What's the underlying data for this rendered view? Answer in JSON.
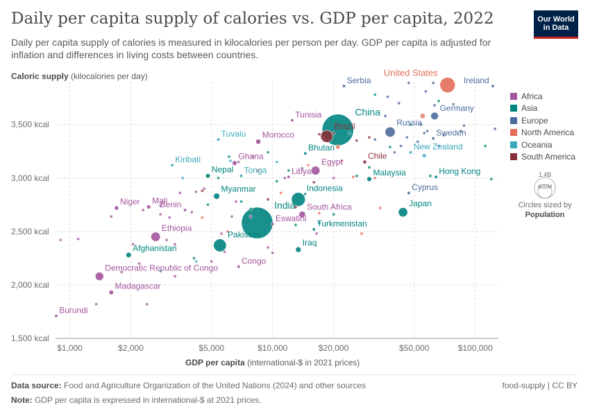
{
  "header": {
    "title": "Daily per capita supply of calories vs. GDP per capita, 2022",
    "subtitle": "Daily per capita supply of calories is measured in kilocalories per person per day. GDP per capita is adjusted for inflation and differences in living costs between countries.",
    "logo_line1": "Our World",
    "logo_line2": "in Data"
  },
  "axes": {
    "y_name": "Caloric supply",
    "y_unit": " (kilocalories per day)",
    "x_name": "GDP per capita",
    "x_unit": " (international-$ in 2021 prices)"
  },
  "legend": {
    "regions": [
      {
        "name": "Africa",
        "color": "#a2559c"
      },
      {
        "name": "Asia",
        "color": "#00847e"
      },
      {
        "name": "Europe",
        "color": "#4c6a9c"
      },
      {
        "name": "North America",
        "color": "#e56e5a"
      },
      {
        "name": "Oceania",
        "color": "#38aaba"
      },
      {
        "name": "South America",
        "color": "#883039"
      }
    ],
    "size_max": "1.4B",
    "size_min": "600M",
    "size_note": "Circles sized by",
    "size_var": "Population"
  },
  "footer": {
    "source_label": "Data source:",
    "source_text": " Food and Agriculture Organization of the United Nations (2024) and other sources",
    "note_label": "Note:",
    "note_text": " GDP per capita is expressed in international-$ at 2021 prices.",
    "right": "food-supply | CC BY"
  },
  "chart_data": {
    "type": "scatter",
    "x_scale": "log",
    "xlim": [
      850,
      130000
    ],
    "ylim": [
      1500,
      3900
    ],
    "x_ticks": [
      {
        "v": 1000,
        "label": "$1,000"
      },
      {
        "v": 2000,
        "label": "$2,000"
      },
      {
        "v": 5000,
        "label": "$5,000"
      },
      {
        "v": 10000,
        "label": "$10,000"
      },
      {
        "v": 20000,
        "label": "$20,000"
      },
      {
        "v": 50000,
        "label": "$50,000"
      },
      {
        "v": 100000,
        "label": "$100,000"
      }
    ],
    "y_ticks": [
      {
        "v": 1500,
        "label": "1,500 kcal"
      },
      {
        "v": 2000,
        "label": "2,000 kcal"
      },
      {
        "v": 2500,
        "label": "2,500 kcal"
      },
      {
        "v": 3000,
        "label": "3,000 kcal"
      },
      {
        "v": 3500,
        "label": "3,500 kcal"
      }
    ],
    "grid": true,
    "legend_position": "right",
    "labeled_points": [
      {
        "label": "Burundi",
        "region": "Africa",
        "x": 850,
        "y": 1710,
        "pop": 13,
        "anchor": "start"
      },
      {
        "label": "Madagascar",
        "region": "Africa",
        "x": 1600,
        "y": 1930,
        "pop": 30,
        "anchor": "start"
      },
      {
        "label": "Democratic Republic of Congo",
        "region": "Africa",
        "x": 1400,
        "y": 2080,
        "pop": 100,
        "anchor": "start"
      },
      {
        "label": "Afghanistan",
        "region": "Asia",
        "x": 1950,
        "y": 2280,
        "pop": 41,
        "anchor": "start"
      },
      {
        "label": "Ethiopia",
        "region": "Africa",
        "x": 2650,
        "y": 2450,
        "pop": 123,
        "anchor": "start"
      },
      {
        "label": "Niger",
        "region": "Africa",
        "x": 1700,
        "y": 2720,
        "pop": 26,
        "anchor": "start"
      },
      {
        "label": "Mali",
        "region": "Africa",
        "x": 2450,
        "y": 2730,
        "pop": 23,
        "anchor": "start"
      },
      {
        "label": "Benin",
        "region": "Africa",
        "x": 3700,
        "y": 2700,
        "pop": 13,
        "anchor": "end"
      },
      {
        "label": "Kiribati",
        "region": "Oceania",
        "x": 3200,
        "y": 3120,
        "pop": 1,
        "anchor": "start"
      },
      {
        "label": "Nepal",
        "region": "Asia",
        "x": 4800,
        "y": 3020,
        "pop": 30,
        "anchor": "start"
      },
      {
        "label": "Tuvalu",
        "region": "Oceania",
        "x": 5400,
        "y": 3360,
        "pop": 1,
        "anchor": "start"
      },
      {
        "label": "Pakistan",
        "region": "Asia",
        "x": 5500,
        "y": 2370,
        "pop": 236,
        "anchor": "start"
      },
      {
        "label": "Congo",
        "region": "Africa",
        "x": 6800,
        "y": 2170,
        "pop": 6,
        "anchor": "start"
      },
      {
        "label": "Myanmar",
        "region": "Asia",
        "x": 5300,
        "y": 2830,
        "pop": 54,
        "anchor": "start"
      },
      {
        "label": "Ghana",
        "region": "Africa",
        "x": 6500,
        "y": 3140,
        "pop": 33,
        "anchor": "start"
      },
      {
        "label": "Morocco",
        "region": "Africa",
        "x": 8500,
        "y": 3340,
        "pop": 37,
        "anchor": "start"
      },
      {
        "label": "Tonga",
        "region": "Oceania",
        "x": 7000,
        "y": 3020,
        "pop": 1,
        "anchor": "start"
      },
      {
        "label": "India",
        "region": "Asia",
        "x": 8400,
        "y": 2580,
        "pop": 1420,
        "anchor": "start"
      },
      {
        "label": "Eswatini",
        "region": "Africa",
        "x": 10000,
        "y": 2570,
        "pop": 1,
        "anchor": "start"
      },
      {
        "label": "Iraq",
        "region": "Asia",
        "x": 13400,
        "y": 2330,
        "pop": 44,
        "anchor": "start"
      },
      {
        "label": "Indonesia",
        "region": "Asia",
        "x": 13400,
        "y": 2800,
        "pop": 275,
        "anchor": "start"
      },
      {
        "label": "South Africa",
        "region": "Africa",
        "x": 14000,
        "y": 2660,
        "pop": 60,
        "anchor": "start"
      },
      {
        "label": "Turkmenistan",
        "region": "Asia",
        "x": 16000,
        "y": 2520,
        "pop": 6,
        "anchor": "start"
      },
      {
        "label": "Libya",
        "region": "Africa",
        "x": 12000,
        "y": 3010,
        "pop": 7,
        "anchor": "start"
      },
      {
        "label": "Egypt",
        "region": "Africa",
        "x": 16300,
        "y": 3070,
        "pop": 111,
        "anchor": "start"
      },
      {
        "label": "Tunisia",
        "region": "Africa",
        "x": 12500,
        "y": 3540,
        "pop": 12,
        "anchor": "start"
      },
      {
        "label": "Bhutan",
        "region": "Asia",
        "x": 14500,
        "y": 3230,
        "pop": 1,
        "anchor": "start"
      },
      {
        "label": "China",
        "region": "Asia",
        "x": 21000,
        "y": 3450,
        "pop": 1425,
        "anchor": "start"
      },
      {
        "label": "Brazil",
        "region": "South America",
        "x": 18500,
        "y": 3390,
        "pop": 215,
        "anchor": "start"
      },
      {
        "label": "Chile",
        "region": "South America",
        "x": 28500,
        "y": 3150,
        "pop": 19,
        "anchor": "start"
      },
      {
        "label": "Serbia",
        "region": "Europe",
        "x": 22500,
        "y": 3860,
        "pop": 7,
        "anchor": "start"
      },
      {
        "label": "United States",
        "region": "North America",
        "x": 73000,
        "y": 3870,
        "pop": 338,
        "anchor": "end"
      },
      {
        "label": "Ireland",
        "region": "Europe",
        "x": 122000,
        "y": 3860,
        "pop": 5,
        "anchor": "end"
      },
      {
        "label": "Germany",
        "region": "Europe",
        "x": 63000,
        "y": 3580,
        "pop": 83,
        "anchor": "start"
      },
      {
        "label": "Russia",
        "region": "Europe",
        "x": 38000,
        "y": 3430,
        "pop": 145,
        "anchor": "start"
      },
      {
        "label": "Sweden",
        "region": "Europe",
        "x": 62000,
        "y": 3370,
        "pop": 10,
        "anchor": "start"
      },
      {
        "label": "New Zealand",
        "region": "Oceania",
        "x": 48000,
        "y": 3240,
        "pop": 5,
        "anchor": "start"
      },
      {
        "label": "Hong Kong",
        "region": "Asia",
        "x": 64000,
        "y": 3010,
        "pop": 7,
        "anchor": "start"
      },
      {
        "label": "Malaysia",
        "region": "Asia",
        "x": 30000,
        "y": 2990,
        "pop": 34,
        "anchor": "start"
      },
      {
        "label": "Cyprus",
        "region": "Europe",
        "x": 47000,
        "y": 2860,
        "pop": 1,
        "anchor": "start"
      },
      {
        "label": "Japan",
        "region": "Asia",
        "x": 44000,
        "y": 2680,
        "pop": 124,
        "anchor": "start"
      }
    ],
    "other_points": [
      {
        "region": "Africa",
        "x": 900,
        "y": 2420,
        "pop": 5
      },
      {
        "region": "Africa",
        "x": 1100,
        "y": 2430,
        "pop": 4
      },
      {
        "region": "Africa",
        "x": 1350,
        "y": 1820,
        "pop": 8
      },
      {
        "region": "Africa",
        "x": 1600,
        "y": 2640,
        "pop": 8
      },
      {
        "region": "Africa",
        "x": 1800,
        "y": 2120,
        "pop": 6
      },
      {
        "region": "Africa",
        "x": 2050,
        "y": 2380,
        "pop": 7
      },
      {
        "region": "Africa",
        "x": 2200,
        "y": 2200,
        "pop": 5
      },
      {
        "region": "Africa",
        "x": 2400,
        "y": 1820,
        "pop": 8
      },
      {
        "region": "Africa",
        "x": 2300,
        "y": 2700,
        "pop": 9
      },
      {
        "region": "Africa",
        "x": 2800,
        "y": 2740,
        "pop": 8
      },
      {
        "region": "Africa",
        "x": 2800,
        "y": 2660,
        "pop": 8
      },
      {
        "region": "Africa",
        "x": 3100,
        "y": 2630,
        "pop": 5
      },
      {
        "region": "Africa",
        "x": 3000,
        "y": 2420,
        "pop": 9
      },
      {
        "region": "Africa",
        "x": 3300,
        "y": 2380,
        "pop": 12
      },
      {
        "region": "Africa",
        "x": 3300,
        "y": 2080,
        "pop": 7
      },
      {
        "region": "Africa",
        "x": 3500,
        "y": 2860,
        "pop": 9
      },
      {
        "region": "Africa",
        "x": 4000,
        "y": 2680,
        "pop": 9
      },
      {
        "region": "Africa",
        "x": 4200,
        "y": 2870,
        "pop": 8
      },
      {
        "region": "Africa",
        "x": 4600,
        "y": 2900,
        "pop": 6
      },
      {
        "region": "Africa",
        "x": 5000,
        "y": 2220,
        "pop": 8
      },
      {
        "region": "Africa",
        "x": 5600,
        "y": 2480,
        "pop": 8
      },
      {
        "region": "Africa",
        "x": 5800,
        "y": 2310,
        "pop": 6
      },
      {
        "region": "Africa",
        "x": 6300,
        "y": 2640,
        "pop": 5
      },
      {
        "region": "Africa",
        "x": 6600,
        "y": 2780,
        "pop": 9
      },
      {
        "region": "Africa",
        "x": 6800,
        "y": 3150,
        "pop": 5
      },
      {
        "region": "Africa",
        "x": 7800,
        "y": 2640,
        "pop": 6
      },
      {
        "region": "Africa",
        "x": 8000,
        "y": 3200,
        "pop": 5
      },
      {
        "region": "Africa",
        "x": 9500,
        "y": 2350,
        "pop": 6
      },
      {
        "region": "Africa",
        "x": 10000,
        "y": 2300,
        "pop": 5
      },
      {
        "region": "Africa",
        "x": 11500,
        "y": 3000,
        "pop": 5
      },
      {
        "region": "Africa",
        "x": 14000,
        "y": 3090,
        "pop": 5
      },
      {
        "region": "Africa",
        "x": 16500,
        "y": 2480,
        "pop": 5
      },
      {
        "region": "Africa",
        "x": 20000,
        "y": 3000,
        "pop": 5
      },
      {
        "region": "Asia",
        "x": 4100,
        "y": 2250,
        "pop": 5
      },
      {
        "region": "Asia",
        "x": 4800,
        "y": 2750,
        "pop": 8
      },
      {
        "region": "Asia",
        "x": 5400,
        "y": 3000,
        "pop": 8
      },
      {
        "region": "Asia",
        "x": 6100,
        "y": 3200,
        "pop": 5
      },
      {
        "region": "Asia",
        "x": 7000,
        "y": 2780,
        "pop": 10
      },
      {
        "region": "Asia",
        "x": 7800,
        "y": 2710,
        "pop": 8
      },
      {
        "region": "Asia",
        "x": 9500,
        "y": 3240,
        "pop": 8
      },
      {
        "region": "Asia",
        "x": 10500,
        "y": 2970,
        "pop": 10
      },
      {
        "region": "Asia",
        "x": 12000,
        "y": 3070,
        "pop": 6
      },
      {
        "region": "Asia",
        "x": 13000,
        "y": 2560,
        "pop": 8
      },
      {
        "region": "Asia",
        "x": 14500,
        "y": 2850,
        "pop": 6
      },
      {
        "region": "Asia",
        "x": 17000,
        "y": 2580,
        "pop": 7
      },
      {
        "region": "Asia",
        "x": 20000,
        "y": 2660,
        "pop": 9
      },
      {
        "region": "Asia",
        "x": 24000,
        "y": 3420,
        "pop": 7
      },
      {
        "region": "Asia",
        "x": 26000,
        "y": 3020,
        "pop": 5
      },
      {
        "region": "Asia",
        "x": 30000,
        "y": 3100,
        "pop": 5
      },
      {
        "region": "Asia",
        "x": 32000,
        "y": 3780,
        "pop": 9
      },
      {
        "region": "Asia",
        "x": 38000,
        "y": 3290,
        "pop": 5
      },
      {
        "region": "Asia",
        "x": 48000,
        "y": 3500,
        "pop": 5
      },
      {
        "region": "Asia",
        "x": 60000,
        "y": 3020,
        "pop": 5
      },
      {
        "region": "Asia",
        "x": 66000,
        "y": 3720,
        "pop": 5
      },
      {
        "region": "Asia",
        "x": 112000,
        "y": 3300,
        "pop": 5
      },
      {
        "region": "Asia",
        "x": 120000,
        "y": 2990,
        "pop": 5
      },
      {
        "region": "Europe",
        "x": 32000,
        "y": 3360,
        "pop": 5
      },
      {
        "region": "Europe",
        "x": 36000,
        "y": 3580,
        "pop": 5
      },
      {
        "region": "Europe",
        "x": 37000,
        "y": 3760,
        "pop": 5
      },
      {
        "region": "Europe",
        "x": 40000,
        "y": 3240,
        "pop": 5
      },
      {
        "region": "Europe",
        "x": 42000,
        "y": 3700,
        "pop": 5
      },
      {
        "region": "Europe",
        "x": 43000,
        "y": 3300,
        "pop": 5
      },
      {
        "region": "Europe",
        "x": 46000,
        "y": 3380,
        "pop": 5
      },
      {
        "region": "Europe",
        "x": 47000,
        "y": 3890,
        "pop": 5
      },
      {
        "region": "Europe",
        "x": 52000,
        "y": 3340,
        "pop": 9
      },
      {
        "region": "Europe",
        "x": 54000,
        "y": 3500,
        "pop": 9
      },
      {
        "region": "Europe",
        "x": 56000,
        "y": 3420,
        "pop": 8
      },
      {
        "region": "Europe",
        "x": 57000,
        "y": 3810,
        "pop": 8
      },
      {
        "region": "Europe",
        "x": 58000,
        "y": 3440,
        "pop": 8
      },
      {
        "region": "Europe",
        "x": 62000,
        "y": 3890,
        "pop": 5
      },
      {
        "region": "Europe",
        "x": 63000,
        "y": 3680,
        "pop": 8
      },
      {
        "region": "Europe",
        "x": 66000,
        "y": 3300,
        "pop": 5
      },
      {
        "region": "Europe",
        "x": 70000,
        "y": 3400,
        "pop": 5
      },
      {
        "region": "Europe",
        "x": 78000,
        "y": 3690,
        "pop": 5
      },
      {
        "region": "Europe",
        "x": 85000,
        "y": 3440,
        "pop": 5
      },
      {
        "region": "Europe",
        "x": 88000,
        "y": 3490,
        "pop": 5
      },
      {
        "region": "Europe",
        "x": 125000,
        "y": 3460,
        "pop": 5
      },
      {
        "region": "North America",
        "x": 4500,
        "y": 2630,
        "pop": 5
      },
      {
        "region": "North America",
        "x": 6000,
        "y": 2500,
        "pop": 5
      },
      {
        "region": "North America",
        "x": 8500,
        "y": 3070,
        "pop": 5
      },
      {
        "region": "North America",
        "x": 11000,
        "y": 2860,
        "pop": 5
      },
      {
        "region": "North America",
        "x": 15000,
        "y": 3120,
        "pop": 5
      },
      {
        "region": "North America",
        "x": 17000,
        "y": 2670,
        "pop": 5
      },
      {
        "region": "North America",
        "x": 21000,
        "y": 3290,
        "pop": 30
      },
      {
        "region": "North America",
        "x": 22000,
        "y": 3160,
        "pop": 5
      },
      {
        "region": "North America",
        "x": 25000,
        "y": 3010,
        "pop": 5
      },
      {
        "region": "North America",
        "x": 27500,
        "y": 2480,
        "pop": 5
      },
      {
        "region": "North America",
        "x": 32000,
        "y": 3000,
        "pop": 5
      },
      {
        "region": "North America",
        "x": 34000,
        "y": 2720,
        "pop": 5
      },
      {
        "region": "North America",
        "x": 55000,
        "y": 3580,
        "pop": 39
      },
      {
        "region": "Oceania",
        "x": 2800,
        "y": 2130,
        "pop": 5
      },
      {
        "region": "Oceania",
        "x": 3600,
        "y": 3000,
        "pop": 1
      },
      {
        "region": "Oceania",
        "x": 4200,
        "y": 2220,
        "pop": 5
      },
      {
        "region": "Oceania",
        "x": 6200,
        "y": 3160,
        "pop": 5
      },
      {
        "region": "Oceania",
        "x": 10500,
        "y": 3150,
        "pop": 1
      },
      {
        "region": "Oceania",
        "x": 56000,
        "y": 3210,
        "pop": 26
      },
      {
        "region": "South America",
        "x": 4500,
        "y": 2880,
        "pop": 5
      },
      {
        "region": "South America",
        "x": 9500,
        "y": 2800,
        "pop": 5
      },
      {
        "region": "South America",
        "x": 13000,
        "y": 2730,
        "pop": 5
      },
      {
        "region": "South America",
        "x": 16000,
        "y": 2960,
        "pop": 5
      },
      {
        "region": "South America",
        "x": 17000,
        "y": 3410,
        "pop": 5
      },
      {
        "region": "South America",
        "x": 20000,
        "y": 3420,
        "pop": 5
      },
      {
        "region": "South America",
        "x": 26000,
        "y": 3350,
        "pop": 9
      },
      {
        "region": "South America",
        "x": 30000,
        "y": 3380,
        "pop": 5
      }
    ]
  }
}
